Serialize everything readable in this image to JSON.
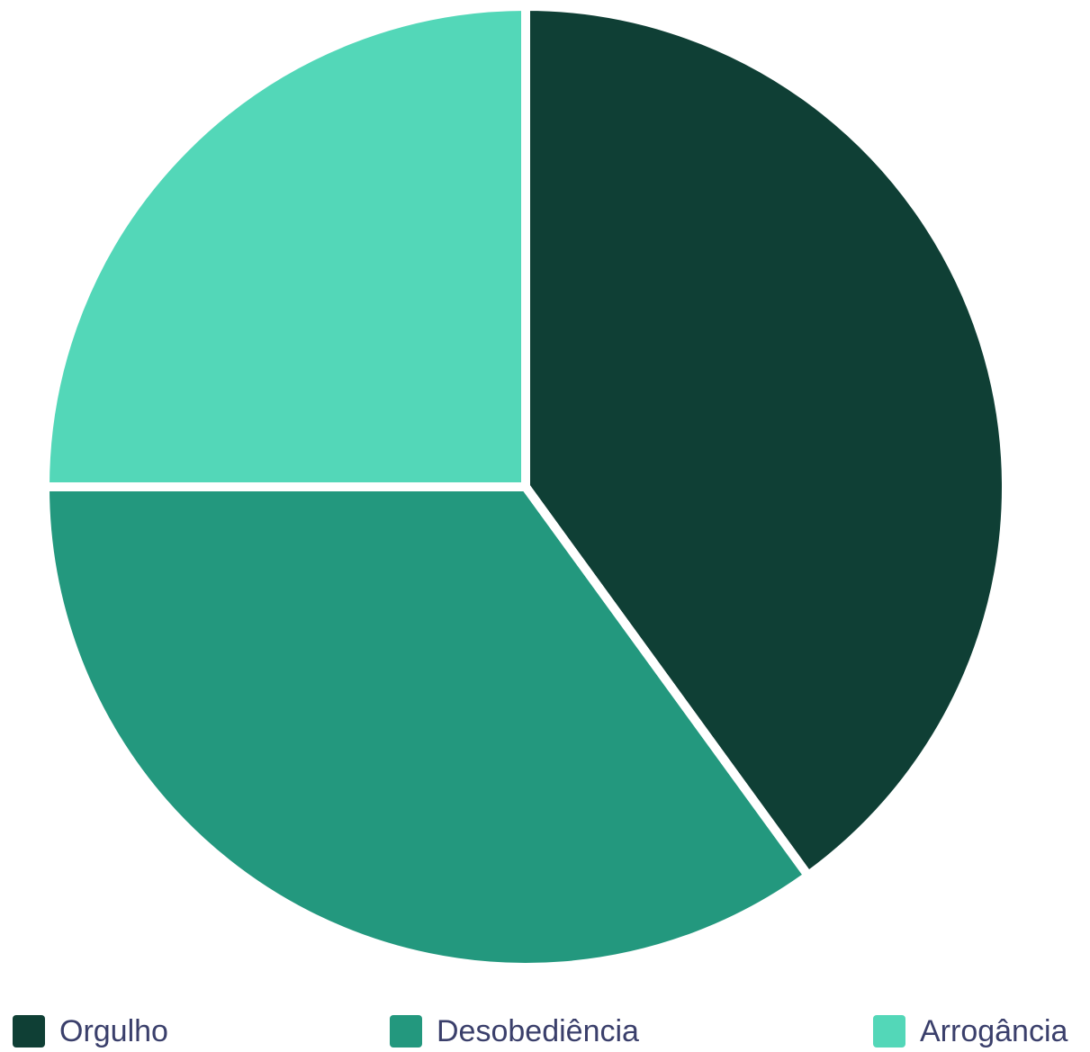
{
  "chart_data": {
    "type": "pie",
    "title": "",
    "slices": [
      {
        "label": "Orgulho",
        "value": 40,
        "color": "#0f3f35"
      },
      {
        "label": "Desobediência",
        "value": 35,
        "color": "#23987e"
      },
      {
        "label": "Arrogância",
        "value": 25,
        "color": "#53d7b8"
      }
    ],
    "legend_position": "bottom",
    "start_angle": "top",
    "direction": "clockwise",
    "separator_color": "#ffffff"
  }
}
